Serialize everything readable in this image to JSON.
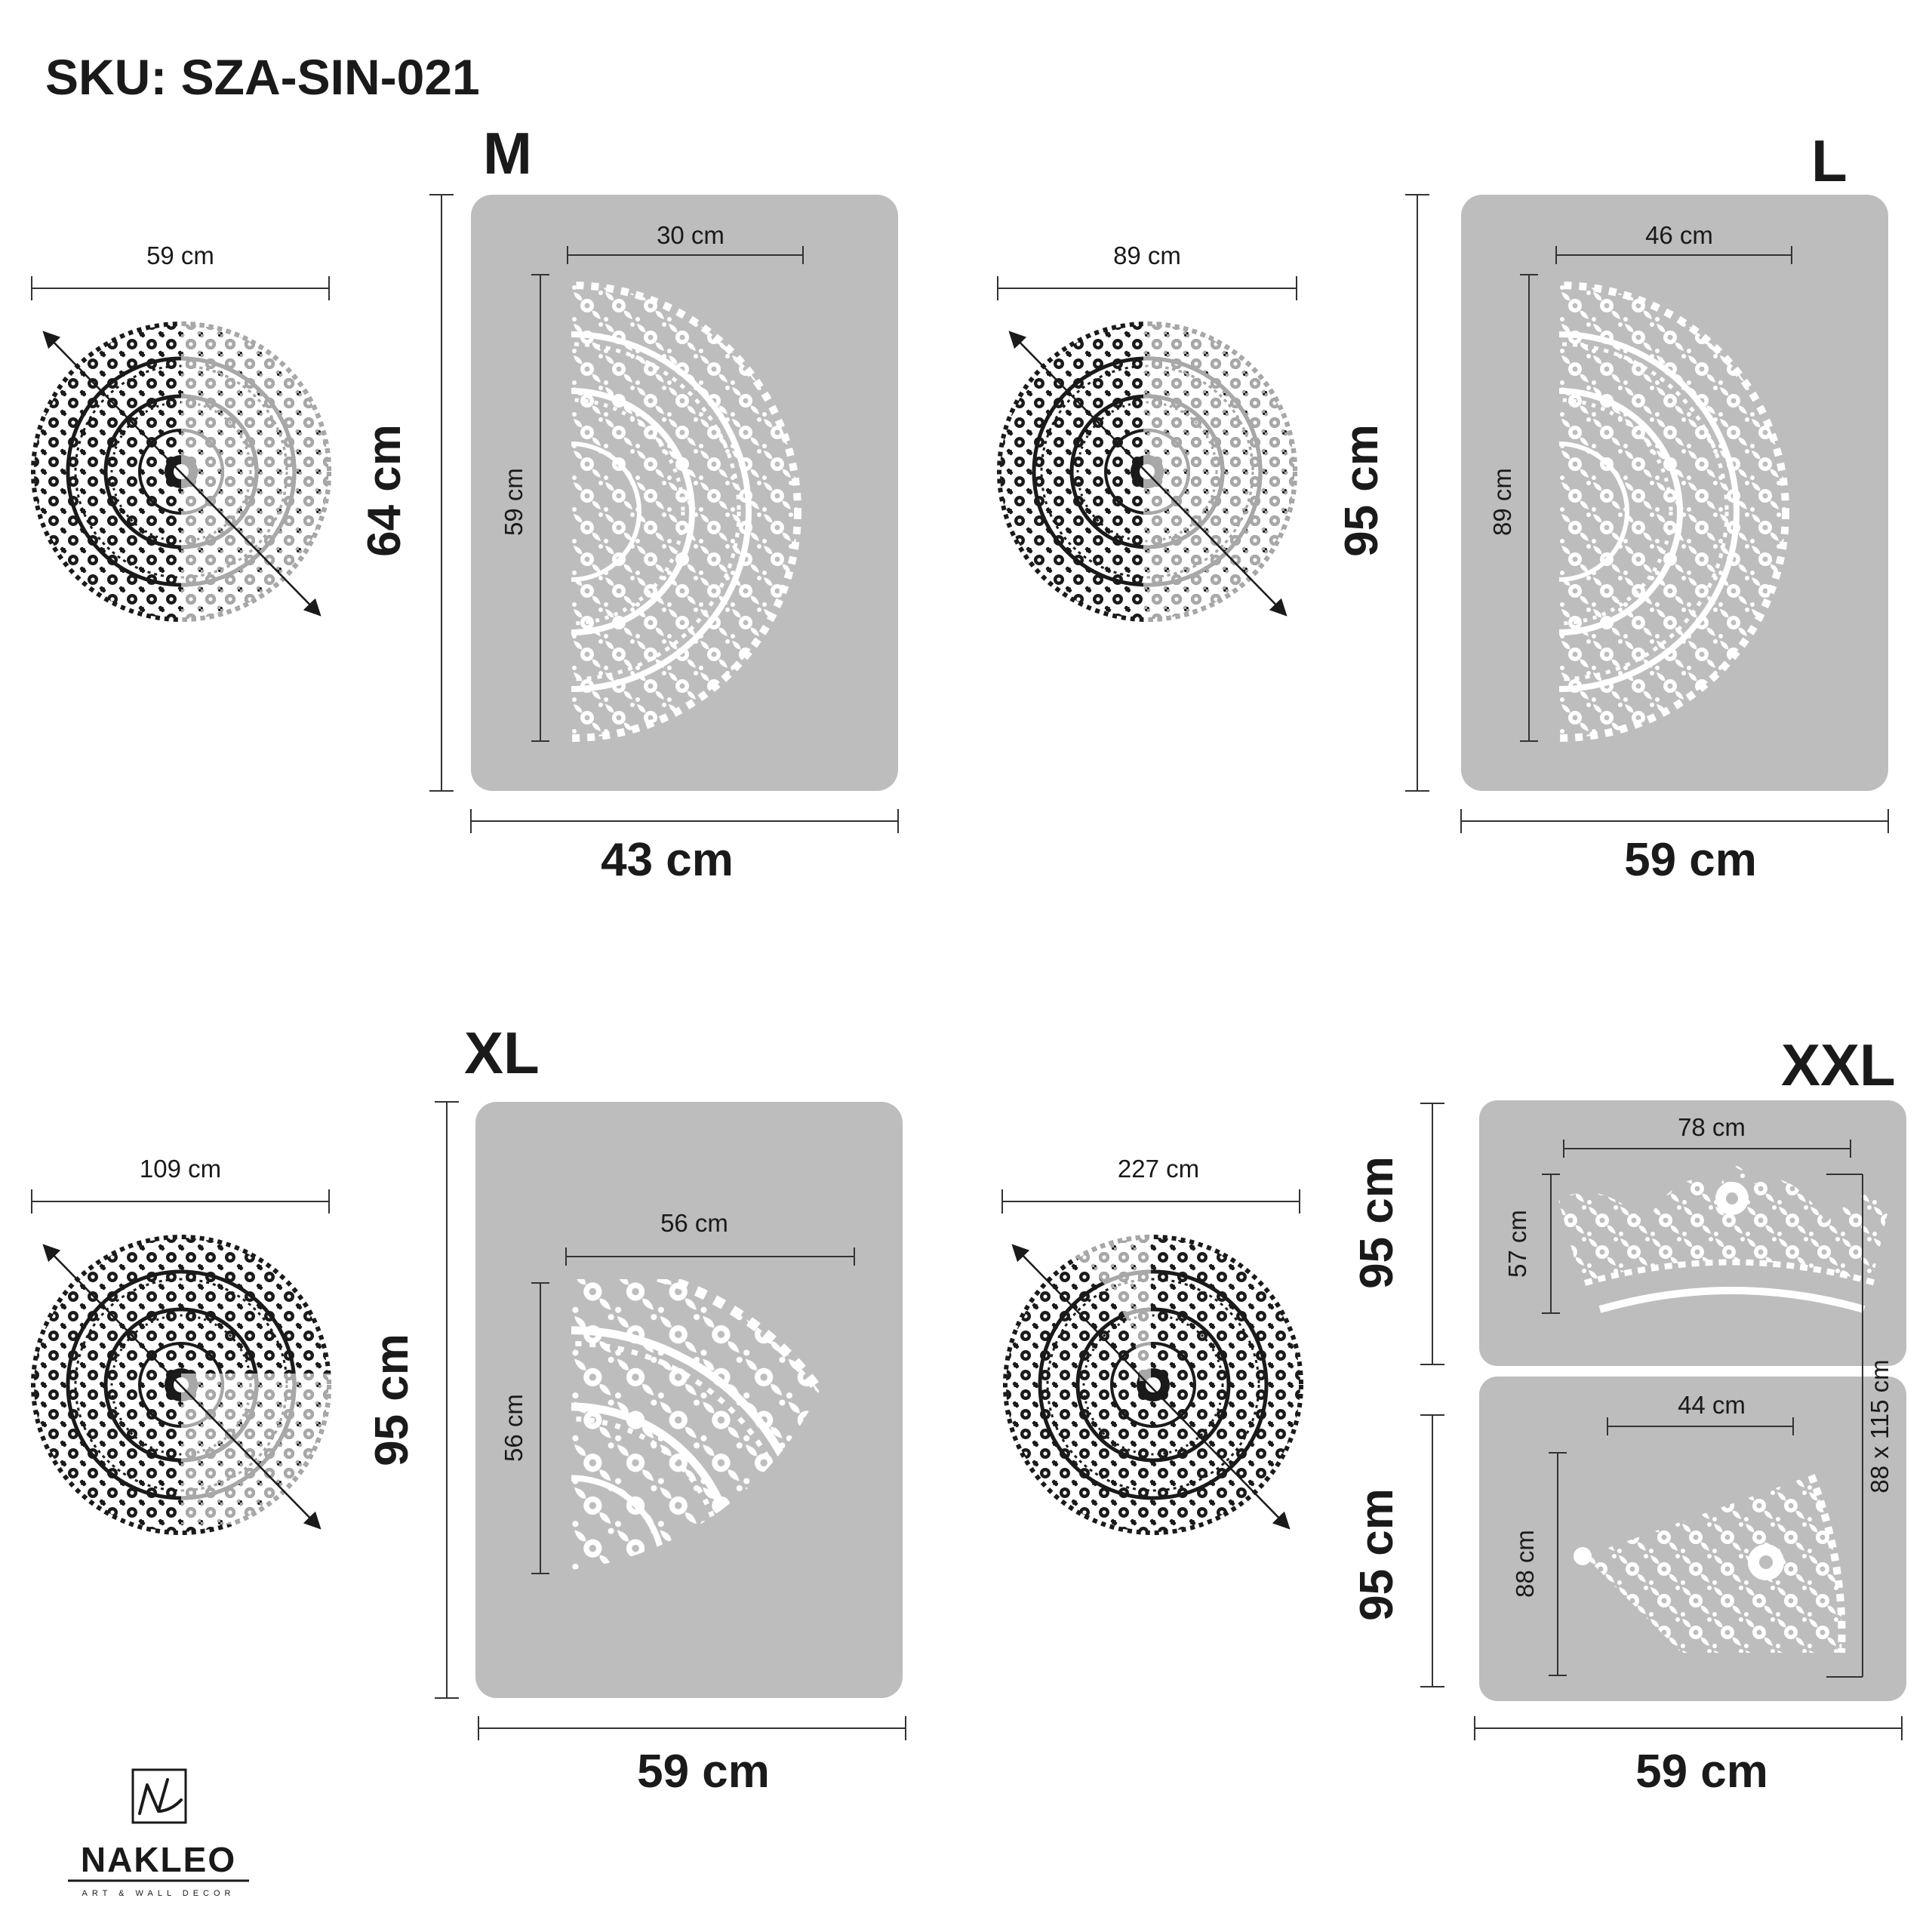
{
  "sku": "SKU: SZA-SIN-021",
  "brand": {
    "name": "NAKLEO",
    "tagline": "ART & WALL DECOR"
  },
  "colors": {
    "sheet": "#bebdbe",
    "pattern_light": "#ffffff",
    "pattern_dark": "#1a1a1a",
    "pattern_grey": "#a8a8a8"
  },
  "panels": [
    {
      "id": "m",
      "size_label": "M",
      "mandala_width": "59 cm",
      "sheet_height": "64 cm",
      "sheet_width": "43 cm",
      "stencil_width": "30 cm",
      "stencil_height": "59 cm",
      "shape": "half-circle"
    },
    {
      "id": "l",
      "size_label": "L",
      "mandala_width": "89 cm",
      "sheet_height": "95 cm",
      "sheet_width": "59 cm",
      "stencil_width": "46 cm",
      "stencil_height": "89 cm",
      "shape": "half-circle"
    },
    {
      "id": "xl",
      "size_label": "XL",
      "mandala_width": "109 cm",
      "sheet_height": "95 cm",
      "sheet_width": "59 cm",
      "stencil_width": "56 cm",
      "stencil_height": "56 cm",
      "shape": "quarter-circle"
    },
    {
      "id": "xxl",
      "size_label": "XXL",
      "mandala_width": "227 cm",
      "sheet_width": "59 cm",
      "sheet_top_height": "95 cm",
      "sheet_bottom_height": "95 cm",
      "top_stencil_width": "78 cm",
      "top_stencil_height": "57 cm",
      "bottom_stencil_width": "44 cm",
      "bottom_stencil_height": "88 cm",
      "segment_size": "88 x 115 cm",
      "shape": "segments"
    }
  ]
}
